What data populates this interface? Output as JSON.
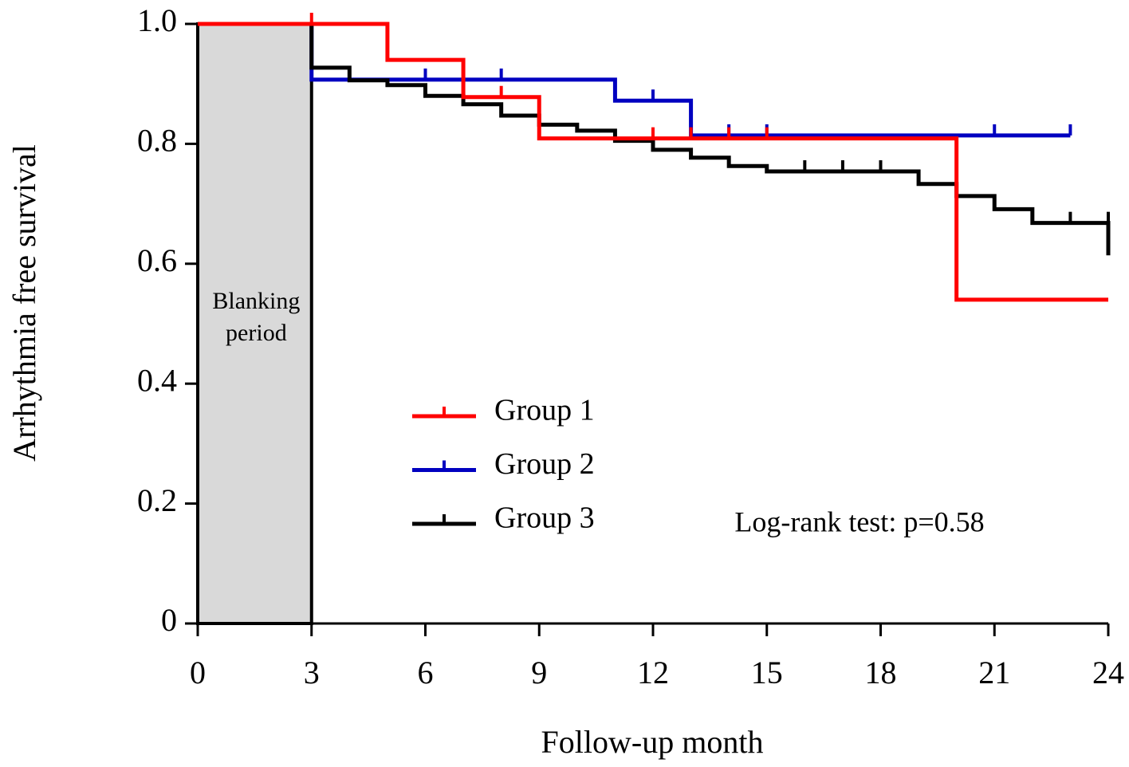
{
  "chart_data": {
    "type": "step",
    "x_label": "Follow-up month",
    "y_label": "Arrhythmia free survival",
    "xlim": [
      0,
      24
    ],
    "ylim": [
      0,
      1
    ],
    "xticks": [
      0,
      3,
      6,
      9,
      12,
      15,
      18,
      21,
      24
    ],
    "yticks": [
      0,
      {
        "value": 0.2,
        "label": "0.2"
      },
      {
        "value": 0.4,
        "label": "0.4"
      },
      {
        "value": 0.6,
        "label": "0.6"
      },
      {
        "value": 0.8,
        "label": "0.8"
      },
      {
        "value": 1,
        "label": "1.0"
      }
    ],
    "shaded_region": {
      "xlim": [
        0,
        3
      ],
      "label": "Blanking period",
      "color": "#d9d9d9"
    },
    "annotation": "Log-rank test: p=0.58",
    "series": [
      {
        "name": "Group 1",
        "color": "#ff0000",
        "x": [
          0,
          5,
          7,
          9,
          20,
          24
        ],
        "values": [
          1,
          0.94,
          0.878,
          0.809,
          0.54,
          0.54
        ],
        "censored": {
          "x": [
            3,
            8,
            12,
            13,
            14,
            15
          ],
          "values": [
            1,
            0.878,
            0.809,
            0.809,
            0.809,
            0.809
          ]
        }
      },
      {
        "name": "Group 2",
        "color": "#0000c0",
        "x": [
          0,
          3,
          11,
          13,
          23
        ],
        "values": [
          1,
          0.907,
          0.872,
          0.814,
          0.814
        ],
        "censored": {
          "x": [
            6,
            8,
            12,
            14,
            15,
            21,
            23
          ],
          "values": [
            0.907,
            0.907,
            0.872,
            0.814,
            0.814,
            0.814,
            0.814
          ]
        }
      },
      {
        "name": "Group 3",
        "color": "#000000",
        "x": [
          0,
          3,
          4,
          5,
          6,
          7,
          8,
          9,
          10,
          11,
          12,
          13,
          14,
          15,
          19,
          20,
          21,
          22,
          24
        ],
        "values": [
          1,
          0.927,
          0.906,
          0.898,
          0.88,
          0.866,
          0.847,
          0.832,
          0.822,
          0.805,
          0.79,
          0.777,
          0.763,
          0.754,
          0.733,
          0.713,
          0.691,
          0.668,
          0.614
        ],
        "censored": {
          "x": [
            16,
            17,
            18,
            23,
            24
          ],
          "values": [
            0.754,
            0.754,
            0.754,
            0.668,
            0.668
          ]
        }
      }
    ]
  }
}
